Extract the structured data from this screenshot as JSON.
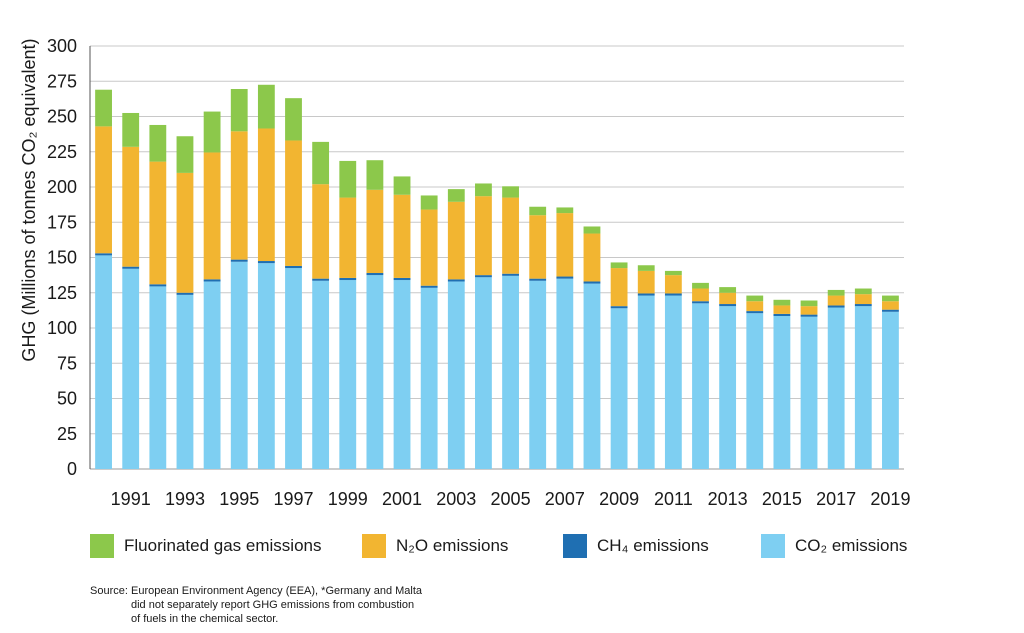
{
  "chart_data": {
    "type": "bar",
    "stacked": true,
    "ylabel": "GHG (Millions of tonnes CO₂ equivalent)",
    "xlabel": "",
    "ylim": [
      0,
      300
    ],
    "yticks": [
      0,
      25,
      50,
      75,
      100,
      125,
      150,
      175,
      200,
      225,
      250,
      275,
      300
    ],
    "grid": true,
    "legend_position": "bottom",
    "categories": [
      "1990",
      "1991",
      "1992",
      "1993",
      "1994",
      "1995",
      "1996",
      "1997",
      "1998",
      "1999",
      "2000",
      "2001",
      "2002",
      "2003",
      "2004",
      "2005",
      "2006",
      "2007",
      "2008",
      "2009",
      "2010",
      "2011",
      "2012",
      "2013",
      "2014",
      "2015",
      "2016",
      "2017",
      "2018",
      "2019"
    ],
    "x_tick_labels": [
      "1991",
      "1993",
      "1995",
      "1997",
      "1999",
      "2001",
      "2003",
      "2005",
      "2007",
      "2009",
      "2011",
      "2013",
      "2015",
      "2017",
      "2019"
    ],
    "series": [
      {
        "name": "CO2 emissions",
        "color": "#7ecff2",
        "values": [
          151.5,
          142,
          129.5,
          123.5,
          133,
          147,
          146,
          142.5,
          133.5,
          134,
          137.5,
          134,
          128.5,
          133,
          136,
          137,
          133.5,
          135,
          131.5,
          114,
          123,
          123,
          117.5,
          115.5,
          110.5,
          108.5,
          108,
          114.5,
          115.5,
          111.5
        ]
      },
      {
        "name": "CH4 emissions",
        "color": "#1f6fb2",
        "values": [
          1.5,
          1.5,
          1.5,
          1.5,
          1.5,
          1.5,
          1.5,
          1.5,
          1.5,
          1.5,
          1.5,
          1.5,
          1.5,
          1.5,
          1.5,
          1.5,
          1.5,
          1.5,
          1.5,
          1.5,
          1.5,
          1.5,
          1.5,
          1.5,
          1.5,
          1.5,
          1.5,
          1.5,
          1.5,
          1.5
        ]
      },
      {
        "name": "N2O emissions",
        "color": "#f2b531",
        "values": [
          90,
          85,
          87,
          85,
          90,
          91,
          94,
          89,
          67,
          57,
          59,
          59,
          54,
          55,
          56,
          54,
          45,
          45,
          34,
          27,
          16,
          13,
          9,
          8,
          7,
          6,
          6,
          7,
          7,
          6
        ]
      },
      {
        "name": "Fluorinated gas emissions",
        "color": "#8cc84b",
        "values": [
          26,
          24,
          26,
          26,
          29,
          30,
          31,
          30,
          30,
          26,
          21,
          13,
          10,
          9,
          9,
          8,
          6,
          4,
          5,
          4,
          4,
          3,
          4,
          4,
          4,
          4,
          4,
          4,
          4,
          4
        ]
      }
    ]
  },
  "legend": [
    {
      "label": "Fluorinated gas emissions",
      "color": "#8cc84b"
    },
    {
      "label": "N₂O emissions",
      "color": "#f2b531"
    },
    {
      "label": "CH₄ emissions",
      "color": "#1f6fb2"
    },
    {
      "label": "CO₂ emissions",
      "color": "#7ecff2"
    }
  ],
  "source": {
    "label": "Source:",
    "lines": [
      "European Environment Agency (EEA), *Germany and Malta",
      "did not separately report GHG emissions from combustion",
      "of fuels in the chemical sector."
    ]
  }
}
